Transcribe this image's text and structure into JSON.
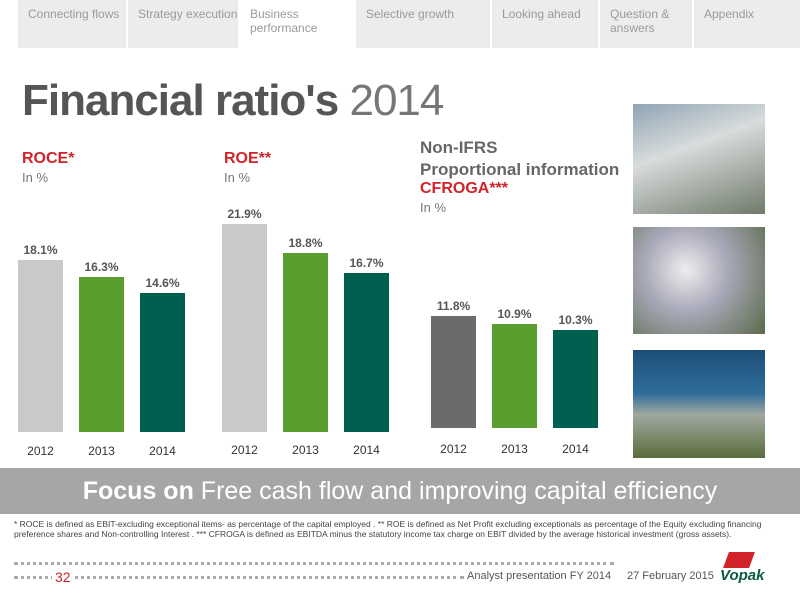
{
  "nav": {
    "tabs": [
      "Connecting flows",
      "Strategy execution",
      "Business performance",
      "Selective growth",
      "Looking ahead",
      "Question & answers",
      "Appendix"
    ],
    "active": "Business performance"
  },
  "title": {
    "bold": "Financial ratio's",
    "light": "2014"
  },
  "chart_data": [
    {
      "type": "bar",
      "title": "ROCE*",
      "subtitle": "In %",
      "categories": [
        "2012",
        "2013",
        "2014"
      ],
      "values": [
        18.1,
        16.3,
        14.6
      ],
      "value_labels": [
        "18.1%",
        "16.3%",
        "14.6%"
      ],
      "colors": [
        "#c9c9c9",
        "#5a9e2f",
        "#00604f"
      ]
    },
    {
      "type": "bar",
      "title": "ROE**",
      "subtitle": "In %",
      "categories": [
        "2012",
        "2013",
        "2014"
      ],
      "values": [
        21.9,
        18.8,
        16.7
      ],
      "value_labels": [
        "21.9%",
        "18.8%",
        "16.7%"
      ],
      "colors": [
        "#c9c9c9",
        "#5a9e2f",
        "#00604f"
      ]
    },
    {
      "type": "bar",
      "header": [
        "Non-IFRS",
        "Proportional information"
      ],
      "title": "CFROGA***",
      "subtitle": "In %",
      "categories": [
        "2012",
        "2013",
        "2014"
      ],
      "values": [
        11.8,
        10.9,
        10.3
      ],
      "value_labels": [
        "11.8%",
        "10.9%",
        "10.3%"
      ],
      "colors": [
        "#6b6b6b",
        "#5a9e2f",
        "#00604f"
      ]
    }
  ],
  "banner": {
    "bold": "Focus on",
    "text": "Free cash flow and improving capital efficiency"
  },
  "footnote": "* ROCE is defined as EBIT-excluding exceptional items- as percentage of the capital employed . ** ROE is defined as Net Profit excluding exceptionals as percentage of the Equity excluding financing preference shares and Non-controlling Interest . *** CFROGA is defined as EBITDA minus the statutory income tax charge on EBIT divided by the average historical investment (gross assets).",
  "footer": {
    "page": "32",
    "event": "Analyst presentation FY 2014",
    "date": "27 February 2015",
    "logo": "Vopak"
  }
}
